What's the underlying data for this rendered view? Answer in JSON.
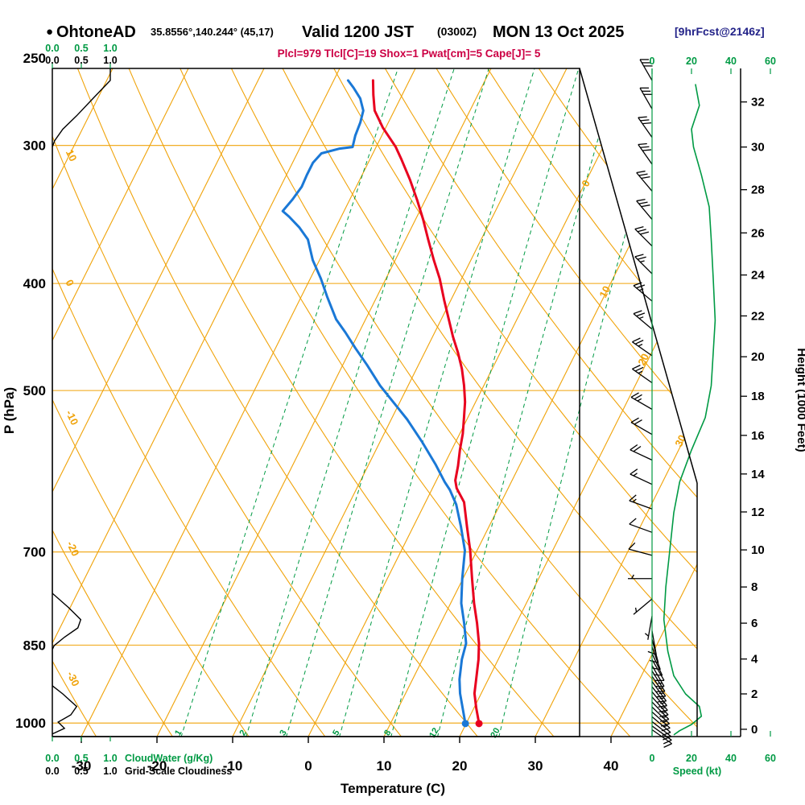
{
  "title": {
    "bullet": "●",
    "station": "OhtoneAD",
    "coords": "35.8556°,140.244° (45,17)",
    "valid_bold1": "Valid 1200 JST",
    "valid_small": "(0300Z)",
    "valid_bold2": "MON 13 Oct 2025",
    "fcst": "[9hrFcst@2146z]"
  },
  "params_line": "Plcl=979 Tlcl[C]=19 Shox=1 Pwat[cm]=5 Cape[J]= 5",
  "axes": {
    "pressure_label": "P (hPa)",
    "pressure_ticks": [
      250,
      300,
      400,
      500,
      700,
      850,
      1000
    ],
    "temp_label": "Temperature (C)",
    "temp_ticks": [
      -30,
      -20,
      -10,
      0,
      10,
      20,
      30,
      40
    ],
    "height_label": "Height (1000 Feet)",
    "height_ticks_ft_hpa": [
      [
        0,
        1013
      ],
      [
        2,
        941
      ],
      [
        4,
        875
      ],
      [
        6,
        812
      ],
      [
        8,
        753
      ],
      [
        10,
        697
      ],
      [
        12,
        644
      ],
      [
        14,
        595
      ],
      [
        16,
        549
      ],
      [
        18,
        506
      ],
      [
        20,
        466
      ],
      [
        22,
        428
      ],
      [
        24,
        393
      ],
      [
        26,
        360
      ],
      [
        28,
        329
      ],
      [
        30,
        301
      ],
      [
        32,
        274
      ]
    ],
    "speed_label": "Speed (kt)",
    "speed_ticks": [
      0,
      20,
      40,
      60
    ],
    "cloudwater_label": "CloudWater (g/Kg)",
    "cloudwater_ticks": [
      "0.0",
      "0.5",
      "1.0"
    ],
    "cloudiness_label": "Grid-Scale Cloudiness"
  },
  "chart_data": {
    "type": "skew-t-log-p sounding",
    "temperature_c_by_hpa": [
      [
        1001,
        21.7
      ],
      [
        969,
        20.3
      ],
      [
        940,
        19.1
      ],
      [
        913,
        18.4
      ],
      [
        876,
        17.4
      ],
      [
        847,
        16.4
      ],
      [
        812,
        14.8
      ],
      [
        779,
        13.1
      ],
      [
        740,
        11.2
      ],
      [
        698,
        9.1
      ],
      [
        664,
        7.1
      ],
      [
        631,
        5.1
      ],
      [
        613,
        3.2
      ],
      [
        603,
        2.5
      ],
      [
        585,
        1.9
      ],
      [
        566,
        1.1
      ],
      [
        547,
        0.4
      ],
      [
        529,
        -0.5
      ],
      [
        512,
        -1.4
      ],
      [
        495,
        -2.6
      ],
      [
        478,
        -4.0
      ],
      [
        462,
        -5.6
      ],
      [
        447,
        -7.3
      ],
      [
        432,
        -8.9
      ],
      [
        414,
        -10.9
      ],
      [
        396,
        -12.9
      ],
      [
        381,
        -14.9
      ],
      [
        365,
        -17.0
      ],
      [
        350,
        -19.0
      ],
      [
        336,
        -21.1
      ],
      [
        322,
        -23.4
      ],
      [
        309,
        -25.8
      ],
      [
        301,
        -27.4
      ],
      [
        289,
        -30.4
      ],
      [
        279,
        -32.6
      ],
      [
        270,
        -33.8
      ],
      [
        262,
        -34.8
      ]
    ],
    "dewpoint_c_by_hpa": [
      [
        1001,
        19.9
      ],
      [
        969,
        18.5
      ],
      [
        940,
        17.2
      ],
      [
        913,
        16.2
      ],
      [
        876,
        15.2
      ],
      [
        847,
        14.7
      ],
      [
        812,
        13.1
      ],
      [
        779,
        11.4
      ],
      [
        740,
        9.9
      ],
      [
        698,
        8.4
      ],
      [
        664,
        6.3
      ],
      [
        634,
        4.2
      ],
      [
        615,
        2.4
      ],
      [
        605,
        1.2
      ],
      [
        583,
        -1.2
      ],
      [
        556,
        -4.5
      ],
      [
        531,
        -7.9
      ],
      [
        512,
        -10.9
      ],
      [
        495,
        -13.7
      ],
      [
        474,
        -16.8
      ],
      [
        458,
        -19.4
      ],
      [
        443,
        -21.8
      ],
      [
        431,
        -23.9
      ],
      [
        411,
        -26.6
      ],
      [
        396,
        -28.6
      ],
      [
        381,
        -30.9
      ],
      [
        365,
        -32.9
      ],
      [
        356,
        -34.8
      ],
      [
        348,
        -36.9
      ],
      [
        344,
        -38.1
      ],
      [
        336,
        -37.6
      ],
      [
        327,
        -37.2
      ],
      [
        319,
        -37.3
      ],
      [
        311,
        -37.3
      ],
      [
        305,
        -36.8
      ],
      [
        302,
        -34.7
      ],
      [
        301,
        -33.1
      ],
      [
        294,
        -33.5
      ],
      [
        286,
        -33.7
      ],
      [
        279,
        -34.1
      ],
      [
        272,
        -35.3
      ],
      [
        266,
        -36.9
      ],
      [
        262,
        -38.1
      ]
    ],
    "cloudiness_frac_by_hpa": [
      [
        255,
        1.0
      ],
      [
        262,
        1.0
      ],
      [
        271,
        0.73
      ],
      [
        282,
        0.42
      ],
      [
        290,
        0.18
      ],
      [
        297,
        0.04
      ],
      [
        301,
        0
      ],
      [
        763,
        0
      ],
      [
        786,
        0.28
      ],
      [
        806,
        0.49
      ],
      [
        820,
        0.44
      ],
      [
        836,
        0.21
      ],
      [
        851,
        0.03
      ],
      [
        858,
        0
      ],
      [
        925,
        0
      ],
      [
        941,
        0.18
      ],
      [
        966,
        0.42
      ],
      [
        983,
        0.32
      ],
      [
        998,
        0.1
      ],
      [
        1011,
        0.21
      ],
      [
        1023,
        0
      ]
    ],
    "wind_speed_kt_by_hpa": [
      [
        264,
        22
      ],
      [
        276,
        24
      ],
      [
        290,
        20
      ],
      [
        301,
        21
      ],
      [
        319,
        25
      ],
      [
        341,
        29
      ],
      [
        365,
        30
      ],
      [
        396,
        31
      ],
      [
        432,
        32
      ],
      [
        462,
        31
      ],
      [
        495,
        30
      ],
      [
        529,
        27
      ],
      [
        566,
        20
      ],
      [
        605,
        14
      ],
      [
        645,
        11
      ],
      [
        698,
        9
      ],
      [
        753,
        7
      ],
      [
        806,
        6
      ],
      [
        861,
        8
      ],
      [
        906,
        11
      ],
      [
        941,
        17
      ],
      [
        966,
        24
      ],
      [
        986,
        25
      ],
      [
        1003,
        20
      ],
      [
        1016,
        14
      ],
      [
        1025,
        11
      ]
    ],
    "wind_barbs_hpa_dir_kt": [
      [
        262,
        330,
        30
      ],
      [
        278,
        330,
        30
      ],
      [
        295,
        325,
        30
      ],
      [
        312,
        325,
        30
      ],
      [
        330,
        320,
        30
      ],
      [
        350,
        320,
        30
      ],
      [
        370,
        315,
        30
      ],
      [
        392,
        315,
        25
      ],
      [
        415,
        310,
        25
      ],
      [
        440,
        310,
        25
      ],
      [
        465,
        305,
        25
      ],
      [
        492,
        305,
        25
      ],
      [
        520,
        300,
        25
      ],
      [
        548,
        300,
        20
      ],
      [
        578,
        295,
        20
      ],
      [
        608,
        295,
        15
      ],
      [
        640,
        290,
        15
      ],
      [
        672,
        290,
        10
      ],
      [
        705,
        285,
        10
      ],
      [
        740,
        270,
        5
      ],
      [
        772,
        230,
        5
      ],
      [
        800,
        190,
        5
      ],
      [
        825,
        170,
        10
      ],
      [
        840,
        165,
        10
      ],
      [
        853,
        160,
        10
      ],
      [
        865,
        155,
        12
      ],
      [
        876,
        150,
        12
      ],
      [
        887,
        150,
        15
      ],
      [
        897,
        148,
        15
      ],
      [
        907,
        146,
        15
      ],
      [
        917,
        144,
        15
      ],
      [
        927,
        142,
        15
      ],
      [
        937,
        140,
        15
      ],
      [
        947,
        138,
        15
      ],
      [
        957,
        136,
        15
      ],
      [
        967,
        134,
        15
      ],
      [
        977,
        132,
        14
      ],
      [
        987,
        130,
        12
      ],
      [
        997,
        128,
        12
      ],
      [
        1006,
        126,
        10
      ],
      [
        1014,
        125,
        10
      ]
    ],
    "isotherm_labels_c": [
      0,
      10,
      20,
      30
    ],
    "dry_adiabat_labels_c": [
      10,
      0,
      -10,
      -20,
      -30
    ],
    "mixing_ratio_g_kg": [
      1,
      2,
      3,
      5,
      8,
      12,
      20
    ],
    "colors": {
      "orange": "#f0a30a",
      "green": "#009a44",
      "red": "#e8001f",
      "blue": "#1a78d6",
      "params": "#cc0044",
      "fcst": "#222288"
    }
  }
}
